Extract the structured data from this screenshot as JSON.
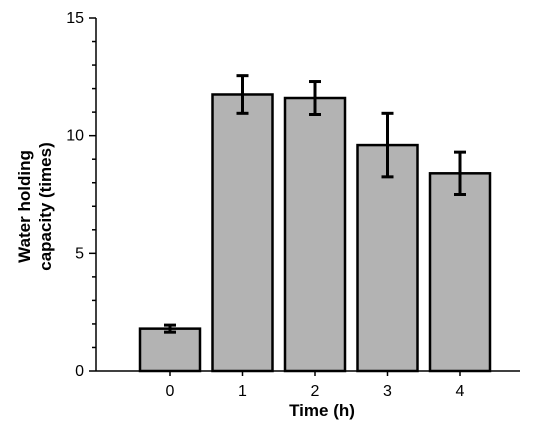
{
  "chart_data": {
    "type": "bar",
    "title": "",
    "xlabel": "Time (h)",
    "ylabel_lines": [
      "Water holding",
      "capacity (times)"
    ],
    "categories": [
      "0",
      "1",
      "2",
      "3",
      "4"
    ],
    "values": [
      1.8,
      11.75,
      11.6,
      9.6,
      8.4
    ],
    "errors": [
      0.15,
      0.8,
      0.7,
      1.35,
      0.9
    ],
    "ylim": [
      0,
      15
    ],
    "yticks": [
      0,
      5,
      10,
      15
    ],
    "ytick_labels": [
      "0",
      "5",
      "10",
      "15"
    ],
    "y_minor_step": 1,
    "grid": false,
    "colors": {
      "bar_fill": "#b3b3b3",
      "bar_stroke": "#000000",
      "error_bar": "#000000",
      "axis": "#000000"
    }
  }
}
